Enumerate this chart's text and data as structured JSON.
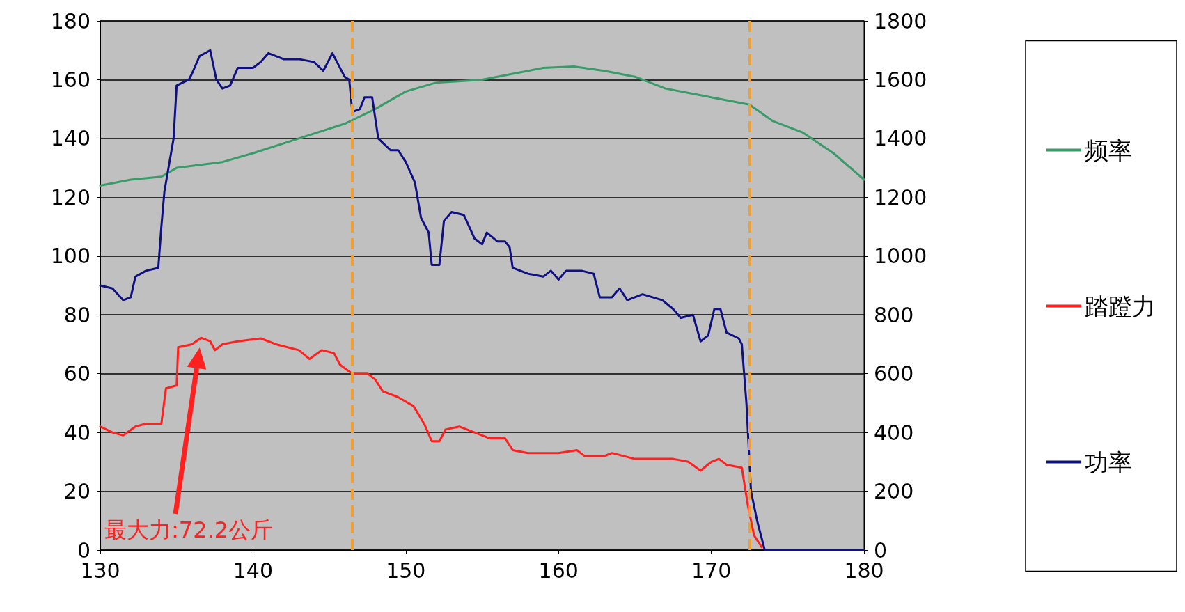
{
  "chart_data": {
    "type": "line",
    "xlim": [
      130,
      180
    ],
    "xticks": [
      130,
      140,
      150,
      160,
      170,
      180
    ],
    "ylim": [
      0,
      180
    ],
    "yticks": [
      0,
      20,
      40,
      60,
      80,
      100,
      120,
      140,
      160,
      180
    ],
    "y2lim": [
      0,
      1800
    ],
    "y2ticks": [
      0,
      200,
      400,
      600,
      800,
      1000,
      1200,
      1400,
      1600,
      1800
    ],
    "grid": "y",
    "legend": "right",
    "line_style": "solid",
    "series": [
      {
        "name": "频率",
        "color": "#3a9a6a",
        "x": [
          130,
          132,
          134,
          135,
          138,
          140,
          143,
          146,
          148,
          150,
          152,
          155,
          157,
          159,
          161,
          163,
          165,
          167,
          169,
          171,
          172.5,
          174,
          176,
          178,
          180
        ],
        "values": [
          124,
          126,
          127,
          130,
          132,
          135,
          140,
          145,
          150,
          156,
          159,
          160,
          162,
          164,
          164.5,
          163,
          161,
          157,
          155,
          153,
          151.5,
          146,
          142,
          135,
          126
        ]
      },
      {
        "name": "踏蹬力",
        "color": "#ff2020",
        "x": [
          130,
          130.8,
          131.5,
          132.3,
          133,
          134,
          134.3,
          135,
          135.1,
          136,
          136.6,
          137.2,
          137.5,
          138,
          139,
          140.5,
          141.5,
          143,
          143.7,
          144.5,
          145.3,
          145.7,
          146.5,
          147.5,
          148,
          148.5,
          149.5,
          150.5,
          151.2,
          151.7,
          152.2,
          152.6,
          153.5,
          154.5,
          155.5,
          156.5,
          157,
          158,
          160,
          161.2,
          161.7,
          163,
          163.5,
          165,
          166,
          167.5,
          168.5,
          169.3,
          170,
          170.5,
          171,
          172,
          172.4,
          172.8,
          173.3
        ],
        "values": [
          42,
          40,
          39,
          42,
          43,
          43,
          55,
          56,
          69,
          70,
          72.2,
          71,
          68,
          70,
          71,
          72,
          70,
          68,
          65,
          68,
          67,
          63,
          60,
          60,
          58,
          54,
          52,
          49,
          43,
          37,
          37,
          41,
          42,
          40,
          38,
          38,
          34,
          33,
          33,
          34,
          32,
          32,
          33,
          31,
          31,
          31,
          30,
          27,
          30,
          31,
          29,
          28,
          15,
          5,
          1
        ]
      },
      {
        "name": "功率",
        "color": "#101080",
        "axis": "y2",
        "x": [
          130,
          130.8,
          131.5,
          132,
          132.3,
          133,
          133.8,
          134,
          134.2,
          134.8,
          135,
          135.8,
          136,
          136.5,
          137.2,
          137.6,
          138,
          138.5,
          139,
          140,
          140.5,
          141,
          142,
          143,
          144,
          144.6,
          145.2,
          145.6,
          146,
          146.3,
          146.5,
          147,
          147.3,
          147.8,
          148.2,
          149,
          149.5,
          150,
          150.6,
          151,
          151.5,
          151.7,
          152.2,
          152.5,
          153,
          153.8,
          154.5,
          155,
          155.3,
          156,
          156.5,
          156.8,
          157,
          158,
          159,
          159.5,
          160,
          160.5,
          161.5,
          162.3,
          162.7,
          163.5,
          164,
          164.5,
          165.5,
          166.8,
          167.5,
          168,
          168.8,
          169.3,
          169.8,
          170.2,
          170.6,
          171,
          171.8,
          172,
          172.3,
          172.6,
          173,
          173.5,
          180
        ],
        "values": [
          900,
          890,
          850,
          860,
          930,
          950,
          960,
          1100,
          1220,
          1400,
          1580,
          1600,
          1620,
          1680,
          1700,
          1600,
          1570,
          1580,
          1640,
          1640,
          1660,
          1690,
          1670,
          1670,
          1660,
          1630,
          1690,
          1650,
          1610,
          1600,
          1490,
          1500,
          1540,
          1540,
          1400,
          1360,
          1360,
          1320,
          1250,
          1130,
          1080,
          970,
          970,
          1120,
          1150,
          1140,
          1060,
          1040,
          1080,
          1050,
          1050,
          1030,
          960,
          940,
          930,
          950,
          920,
          950,
          950,
          940,
          860,
          860,
          890,
          850,
          870,
          850,
          820,
          790,
          800,
          710,
          730,
          820,
          820,
          740,
          720,
          700,
          500,
          200,
          100,
          0,
          0
        ]
      }
    ],
    "ref_lines": [
      {
        "axis": "x",
        "value": 146.5,
        "color": "#f0a030",
        "line_style": "dashed"
      },
      {
        "axis": "x",
        "value": 172.5,
        "color": "#f0a030",
        "line_style": "dashed"
      }
    ],
    "annotations": [
      "最大力:72.2公斤"
    ]
  }
}
